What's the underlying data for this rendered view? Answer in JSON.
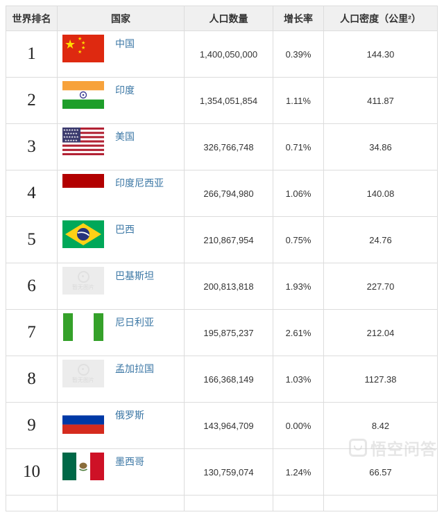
{
  "table": {
    "headers": [
      "世界排名",
      "国家",
      "人口数量",
      "增长率",
      "人口密度（公里²）"
    ],
    "rows": [
      {
        "rank": "1",
        "country": "中国",
        "flag": "china",
        "population": "1,400,050,000",
        "growth": "0.39%",
        "density": "144.30"
      },
      {
        "rank": "2",
        "country": "印度",
        "flag": "india",
        "population": "1,354,051,854",
        "growth": "1.11%",
        "density": "411.87"
      },
      {
        "rank": "3",
        "country": "美国",
        "flag": "usa",
        "population": "326,766,748",
        "growth": "0.71%",
        "density": "34.86"
      },
      {
        "rank": "4",
        "country": "印度尼西亚",
        "flag": "indonesia",
        "population": "266,794,980",
        "growth": "1.06%",
        "density": "140.08"
      },
      {
        "rank": "5",
        "country": "巴西",
        "flag": "brazil",
        "population": "210,867,954",
        "growth": "0.75%",
        "density": "24.76"
      },
      {
        "rank": "6",
        "country": "巴基斯坦",
        "flag": "placeholder",
        "population": "200,813,818",
        "growth": "1.93%",
        "density": "227.70"
      },
      {
        "rank": "7",
        "country": "尼日利亚",
        "flag": "nigeria",
        "population": "195,875,237",
        "growth": "2.61%",
        "density": "212.04"
      },
      {
        "rank": "8",
        "country": "孟加拉国",
        "flag": "placeholder",
        "population": "166,368,149",
        "growth": "1.03%",
        "density": "1127.38"
      },
      {
        "rank": "9",
        "country": "俄罗斯",
        "flag": "russia",
        "population": "143,964,709",
        "growth": "0.00%",
        "density": "8.42"
      },
      {
        "rank": "10",
        "country": "墨西哥",
        "flag": "mexico",
        "population": "130,759,074",
        "growth": "1.24%",
        "density": "66.57"
      }
    ]
  },
  "placeholder_text": "暂无图片",
  "watermark": {
    "text": "悟空问答"
  },
  "colors": {
    "link": "#3a76a4",
    "header_bg": "#f0f0f0",
    "border": "#dcdcdc",
    "body_text": "#333333",
    "rank_text": "#222222",
    "placeholder_bg": "#ececec",
    "watermark": "#cfcfcf"
  }
}
